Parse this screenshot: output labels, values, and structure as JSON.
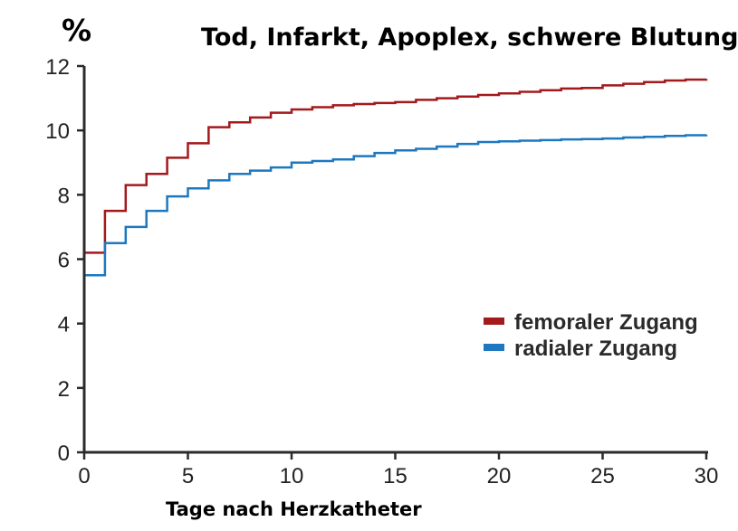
{
  "chart_data": {
    "type": "line",
    "title": "Tod, Infarkt, Apoplex, schwere Blutung",
    "unit_label": "%",
    "xlabel": "Tage nach Herzkatheter",
    "ylabel": "",
    "xlim": [
      0,
      30
    ],
    "ylim": [
      0,
      12
    ],
    "x_ticks": [
      "0",
      "5",
      "10",
      "15",
      "20",
      "25",
      "30"
    ],
    "y_ticks": [
      "0",
      "2",
      "4",
      "6",
      "8",
      "10",
      "12"
    ],
    "step": true,
    "grid": false,
    "legend_position": "bottom-right",
    "series": [
      {
        "name": "femoraler Zugang",
        "color": "#a3191c",
        "x": [
          0,
          1,
          2,
          3,
          4,
          5,
          6,
          7,
          8,
          9,
          10,
          11,
          12,
          13,
          14,
          15,
          16,
          17,
          18,
          19,
          20,
          21,
          22,
          23,
          24,
          25,
          26,
          27,
          28,
          29,
          30
        ],
        "y": [
          6.2,
          7.5,
          8.3,
          8.65,
          9.15,
          9.6,
          10.1,
          10.25,
          10.4,
          10.55,
          10.65,
          10.72,
          10.78,
          10.82,
          10.85,
          10.88,
          10.95,
          11.0,
          11.05,
          11.1,
          11.15,
          11.2,
          11.25,
          11.3,
          11.32,
          11.4,
          11.45,
          11.5,
          11.55,
          11.58,
          11.6
        ]
      },
      {
        "name": "radialer Zugang",
        "color": "#1d78bf",
        "x": [
          0,
          1,
          2,
          3,
          4,
          5,
          6,
          7,
          8,
          9,
          10,
          11,
          12,
          13,
          14,
          15,
          16,
          17,
          18,
          19,
          20,
          21,
          22,
          23,
          24,
          25,
          26,
          27,
          28,
          29,
          30
        ],
        "y": [
          5.5,
          6.5,
          7.0,
          7.5,
          7.95,
          8.2,
          8.45,
          8.65,
          8.75,
          8.85,
          9.0,
          9.05,
          9.1,
          9.2,
          9.3,
          9.38,
          9.43,
          9.5,
          9.58,
          9.64,
          9.66,
          9.68,
          9.7,
          9.72,
          9.73,
          9.75,
          9.78,
          9.8,
          9.83,
          9.85,
          9.87
        ]
      }
    ]
  }
}
